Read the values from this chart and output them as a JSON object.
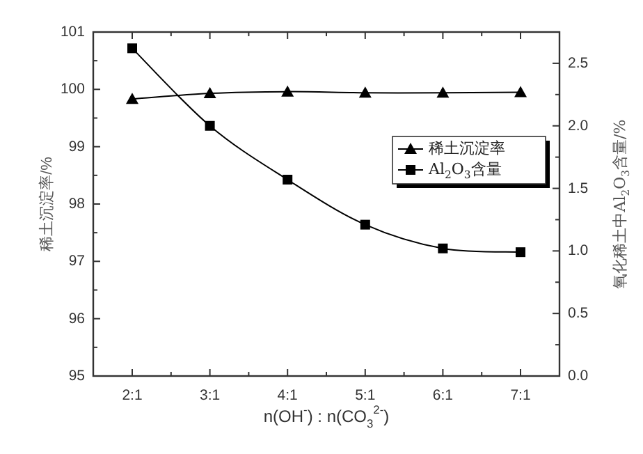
{
  "chart_data": {
    "type": "line",
    "xlabel": "n(OH$^{-}$) : n(CO$_{3}$$^{2-}$)",
    "ylabel": "稀土沉淀率/%",
    "y2label": "氧化稀土中Al$_{2}$O$_{3}$含量/%",
    "categories": [
      "2:1",
      "3:1",
      "4:1",
      "5:1",
      "6:1",
      "7:1"
    ],
    "ylim": [
      95,
      101
    ],
    "yticks": [
      95,
      96,
      97,
      98,
      99,
      100,
      101
    ],
    "y2lim": [
      0,
      2.75
    ],
    "y2ticks": [
      {
        "value": 0,
        "label": "0.0"
      },
      {
        "value": 0.5,
        "label": "0.5"
      },
      {
        "value": 1.0,
        "label": "1.0"
      },
      {
        "value": 1.5,
        "label": "1.5"
      },
      {
        "value": 2.0,
        "label": "2.0"
      },
      {
        "value": 2.5,
        "label": "2.5"
      }
    ],
    "legend": "right",
    "line_style": "solid",
    "series": [
      {
        "name": "稀土沉淀率",
        "color": "#000000",
        "marker": "triangle",
        "values": [
          99.83,
          99.93,
          99.96,
          99.94,
          99.94,
          99.95
        ]
      },
      {
        "name": "Al$_{2}$O$_{3}$含量",
        "color": "#000000",
        "marker": "square",
        "axis": "y2",
        "values": [
          2.62,
          2.0,
          1.57,
          1.21,
          1.02,
          0.99
        ]
      }
    ]
  }
}
